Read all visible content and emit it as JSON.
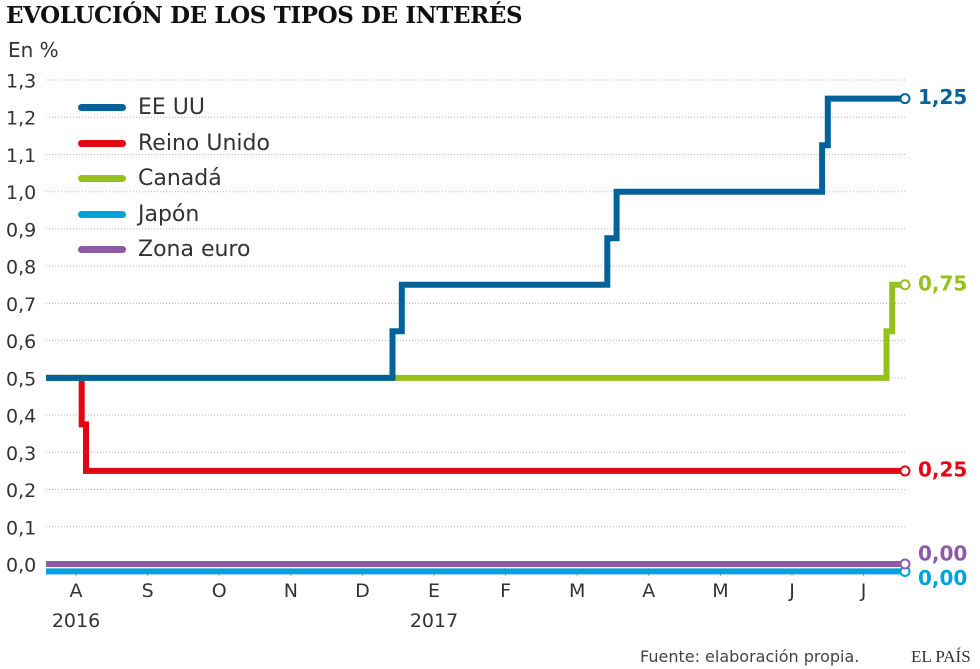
{
  "header": {
    "title": "EVOLUCIÓN DE LOS TIPOS DE INTERÉS",
    "unit": "En %"
  },
  "footer": {
    "source": "Fuente: elaboración propia.",
    "brand": "EL PAÍS"
  },
  "chart_data": {
    "type": "line",
    "step": true,
    "title": "EVOLUCIÓN DE LOS TIPOS DE INTERÉS",
    "ylabel": "En %",
    "ylim": [
      0,
      1.3
    ],
    "yticks": [
      "0,0",
      "0,1",
      "0,2",
      "0,3",
      "0,4",
      "0,5",
      "0,6",
      "0,7",
      "0,8",
      "0,9",
      "1,0",
      "1,1",
      "1,2",
      "1,3"
    ],
    "xlim": [
      0,
      11.55
    ],
    "months": [
      "A",
      "S",
      "O",
      "N",
      "D",
      "E",
      "F",
      "M",
      "A",
      "M",
      "J",
      "J"
    ],
    "years": [
      {
        "label": "2016",
        "month_index": 0
      },
      {
        "label": "2017",
        "month_index": 5
      }
    ],
    "legend": [
      "EE UU",
      "Reino Unido",
      "Canadá",
      "Japón",
      "Zona euro"
    ],
    "series": [
      {
        "name": "Japón",
        "color": "#00a3d9",
        "end_label": "0,00",
        "points": [
          [
            -0.5,
            -0.02
          ],
          [
            11.55,
            -0.02
          ]
        ]
      },
      {
        "name": "Zona euro",
        "color": "#8e5aa6",
        "end_label": "0,00",
        "points": [
          [
            -0.5,
            0.0
          ],
          [
            11.55,
            0.0
          ]
        ]
      },
      {
        "name": "Reino Unido",
        "color": "#e30613",
        "end_label": "0,25",
        "points": [
          [
            -0.5,
            0.5
          ],
          [
            0.08,
            0.5
          ],
          [
            0.08,
            0.375
          ],
          [
            0.14,
            0.375
          ],
          [
            0.14,
            0.25
          ],
          [
            11.55,
            0.25
          ]
        ]
      },
      {
        "name": "Canadá",
        "color": "#95c11f",
        "end_label": "0,75",
        "points": [
          [
            -0.5,
            0.5
          ],
          [
            11.32,
            0.5
          ],
          [
            11.32,
            0.625
          ],
          [
            11.4,
            0.625
          ],
          [
            11.4,
            0.75
          ],
          [
            11.55,
            0.75
          ]
        ]
      },
      {
        "name": "EE UU",
        "color": "#036299",
        "end_label": "1,25",
        "points": [
          [
            -0.5,
            0.5
          ],
          [
            4.42,
            0.5
          ],
          [
            4.42,
            0.625
          ],
          [
            4.55,
            0.625
          ],
          [
            4.55,
            0.75
          ],
          [
            7.42,
            0.75
          ],
          [
            7.42,
            0.875
          ],
          [
            7.55,
            0.875
          ],
          [
            7.55,
            1.0
          ],
          [
            10.42,
            1.0
          ],
          [
            10.42,
            1.125
          ],
          [
            10.5,
            1.125
          ],
          [
            10.5,
            1.25
          ],
          [
            11.55,
            1.25
          ]
        ]
      }
    ]
  }
}
